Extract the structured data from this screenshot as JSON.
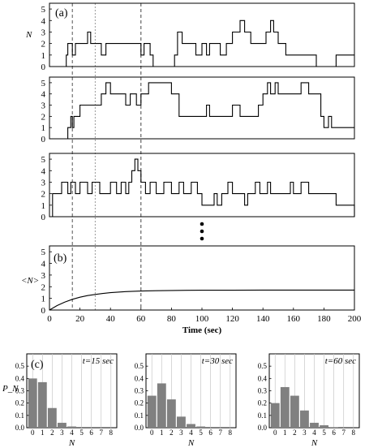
{
  "chart_data": [
    {
      "id": "a",
      "type": "line",
      "panel_label": "(a)",
      "ylabel": "N",
      "xlim": [
        0,
        200
      ],
      "ylim": [
        0,
        5.5
      ],
      "yticks": [
        "0",
        "1",
        "2",
        "3",
        "4",
        "5"
      ],
      "dashed_time_markers": [
        15,
        30,
        60
      ],
      "series": [
        {
          "x": [
            0,
            10,
            11,
            12,
            15,
            17,
            19,
            20,
            25,
            27,
            30,
            34,
            37,
            40,
            45,
            50,
            54,
            58,
            60,
            62,
            64,
            66,
            68,
            70,
            75,
            77,
            80,
            82,
            84,
            87,
            90,
            96,
            100,
            103,
            105,
            109,
            112,
            116,
            120,
            123,
            125,
            128,
            132,
            136,
            140,
            142,
            145,
            147,
            150,
            152,
            155,
            162,
            168,
            175,
            185,
            188,
            200
          ],
          "y": [
            0,
            0,
            1,
            2,
            1,
            2,
            2,
            2,
            3,
            2,
            2,
            1,
            2,
            2,
            2,
            2,
            2,
            2,
            1,
            2,
            2,
            1,
            0,
            0,
            0,
            0,
            0,
            1,
            3,
            2,
            2,
            1,
            2,
            1,
            2,
            2,
            1,
            2,
            3,
            3,
            4,
            3,
            2,
            2,
            2,
            3,
            4,
            3,
            2,
            2,
            1,
            1,
            1,
            0,
            0,
            1,
            1
          ]
        },
        {
          "x": [
            0,
            10,
            12,
            13,
            14,
            15,
            16,
            17,
            20,
            25,
            28,
            30,
            32,
            34,
            37,
            40,
            45,
            50,
            53,
            55,
            57,
            60,
            65,
            67,
            70,
            75,
            80,
            85,
            90,
            92,
            95,
            97,
            100,
            103,
            105,
            108,
            112,
            115,
            120,
            125,
            130,
            135,
            137,
            140,
            143,
            145,
            148,
            150,
            155,
            160,
            165,
            170,
            175,
            178,
            180,
            183,
            185,
            190,
            195,
            198,
            200
          ],
          "y": [
            0,
            0,
            1,
            1,
            2,
            1,
            2,
            2,
            3,
            3,
            3,
            3,
            3,
            4,
            5,
            4,
            4,
            3,
            4,
            4,
            3,
            4,
            5,
            5,
            5,
            5,
            4,
            2,
            2,
            2,
            2,
            2,
            2,
            3,
            2,
            2,
            2,
            2,
            3,
            2,
            2,
            2,
            3,
            4,
            5,
            4,
            5,
            4,
            4,
            4,
            5,
            4,
            4,
            2,
            1,
            2,
            1,
            1,
            1,
            1,
            1
          ]
        },
        {
          "x": [
            0,
            2,
            3,
            8,
            12,
            14,
            17,
            19,
            20,
            25,
            28,
            30,
            33,
            35,
            37,
            40,
            44,
            47,
            50,
            52,
            54,
            56,
            58,
            60,
            63,
            66,
            70,
            75,
            80,
            85,
            88,
            93,
            97,
            100,
            105,
            108,
            110,
            113,
            115,
            117,
            120,
            125,
            128,
            130,
            133,
            135,
            138,
            140,
            143,
            145,
            148,
            150,
            155,
            158,
            160,
            165,
            170,
            175,
            180,
            185,
            188,
            190,
            194,
            200
          ],
          "y": [
            0,
            2,
            2,
            3,
            2,
            3,
            2,
            2,
            3,
            2,
            3,
            3,
            2,
            2,
            2,
            3,
            2,
            3,
            2,
            3,
            4,
            5,
            4,
            3,
            2,
            3,
            2,
            3,
            2,
            3,
            2,
            3,
            2,
            1,
            1,
            2,
            1,
            2,
            2,
            3,
            2,
            2,
            1,
            2,
            2,
            3,
            2,
            2,
            3,
            2,
            2,
            2,
            2,
            3,
            2,
            3,
            2,
            2,
            2,
            2,
            1,
            1,
            1,
            0
          ]
        }
      ]
    },
    {
      "id": "b",
      "type": "line",
      "panel_label": "(b)",
      "ylabel": "<N>",
      "xlabel": "Time (sec)",
      "xlim": [
        0,
        200
      ],
      "ylim": [
        0,
        5.5
      ],
      "xticks": [
        "0",
        "20",
        "40",
        "60",
        "80",
        "100",
        "120",
        "140",
        "160",
        "180",
        "200"
      ],
      "yticks": [
        "0",
        "1",
        "2",
        "3",
        "4",
        "5"
      ],
      "dashed_time_markers": [
        15,
        30,
        60
      ],
      "series": [
        {
          "x": [
            0,
            5,
            10,
            15,
            20,
            25,
            30,
            35,
            40,
            45,
            50,
            55,
            60,
            70,
            80,
            90,
            100,
            120,
            140,
            160,
            180,
            200
          ],
          "y": [
            0,
            0.38,
            0.68,
            0.92,
            1.1,
            1.24,
            1.34,
            1.42,
            1.49,
            1.54,
            1.58,
            1.61,
            1.63,
            1.66,
            1.68,
            1.69,
            1.7,
            1.7,
            1.71,
            1.71,
            1.71,
            1.71
          ]
        }
      ]
    },
    {
      "id": "c1",
      "type": "bar",
      "panel_label": "(c)",
      "annotation": "t=15 sec",
      "ylabel": "P_N",
      "xlabel": "N",
      "categories": [
        "0",
        "1",
        "2",
        "3",
        "4",
        "5",
        "6",
        "7",
        "8"
      ],
      "values": [
        0.4,
        0.37,
        0.16,
        0.04,
        0.01,
        0.0,
        0.0,
        0.0,
        0.0
      ],
      "ylim": [
        0,
        0.6
      ],
      "yticks": [
        "0.0",
        "0.1",
        "0.2",
        "0.3",
        "0.4",
        "0.5"
      ]
    },
    {
      "id": "c2",
      "type": "bar",
      "annotation": "t=30 sec",
      "xlabel": "N",
      "categories": [
        "0",
        "1",
        "2",
        "3",
        "4",
        "5",
        "6",
        "7",
        "8"
      ],
      "values": [
        0.26,
        0.36,
        0.23,
        0.09,
        0.03,
        0.01,
        0.0,
        0.0,
        0.0
      ],
      "ylim": [
        0,
        0.6
      ],
      "yticks": [
        "0.0",
        "0.1",
        "0.2",
        "0.3",
        "0.4",
        "0.5"
      ]
    },
    {
      "id": "c3",
      "type": "bar",
      "annotation": "t=60 sec",
      "xlabel": "N",
      "categories": [
        "0",
        "1",
        "2",
        "3",
        "4",
        "5",
        "6",
        "7",
        "8"
      ],
      "values": [
        0.2,
        0.33,
        0.26,
        0.14,
        0.04,
        0.02,
        0.005,
        0.0,
        0.0
      ],
      "ylim": [
        0,
        0.6
      ],
      "yticks": [
        "0.0",
        "0.1",
        "0.2",
        "0.3",
        "0.4",
        "0.5"
      ]
    }
  ]
}
